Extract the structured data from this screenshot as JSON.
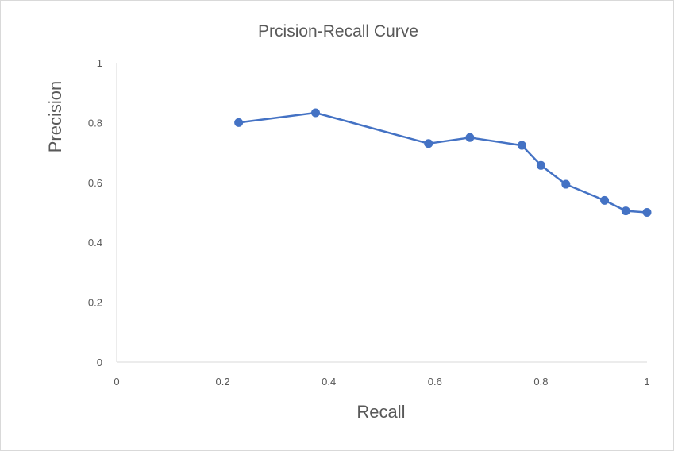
{
  "chart_data": {
    "type": "line",
    "title": "Prcision-Recall Curve",
    "xlabel": "Recall",
    "ylabel": "Precision",
    "xlim": [
      0,
      1
    ],
    "ylim": [
      0,
      1
    ],
    "x_ticks": [
      "0",
      "0.2",
      "0.4",
      "0.6",
      "0.8",
      "1"
    ],
    "y_ticks": [
      "0",
      "0.2",
      "0.4",
      "0.6",
      "0.8",
      "1"
    ],
    "grid": false,
    "legend": "none",
    "line_color": "#4472C4",
    "series": [
      {
        "x": [
          0.23,
          0.375,
          0.588,
          0.666,
          0.764,
          0.8,
          0.847,
          0.92,
          0.96,
          1.0
        ],
        "y": [
          0.8,
          0.833,
          0.73,
          0.75,
          0.724,
          0.657,
          0.594,
          0.54,
          0.505,
          0.5
        ]
      }
    ]
  }
}
